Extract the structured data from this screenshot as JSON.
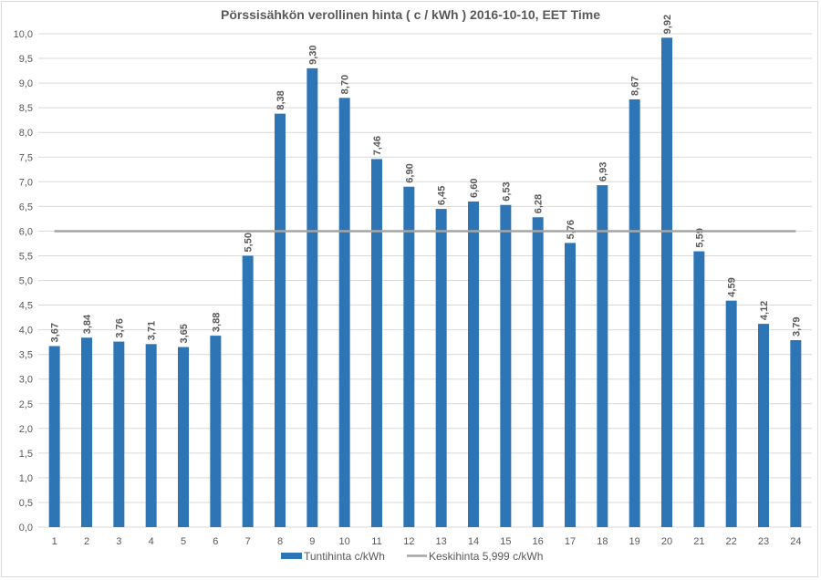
{
  "chart_data": {
    "type": "bar",
    "title": "Pörssisähkön verollinen hinta ( c / kWh ) 2016-10-10, EET Time",
    "xlabel": "",
    "ylabel": "",
    "ylim": [
      0,
      10
    ],
    "yticks": [
      "0,0",
      "0,5",
      "1,0",
      "1,5",
      "2,0",
      "2,5",
      "3,0",
      "3,5",
      "4,0",
      "4,5",
      "5,0",
      "5,5",
      "6,0",
      "6,5",
      "7,0",
      "7,5",
      "8,0",
      "8,5",
      "9,0",
      "9,5",
      "10,0"
    ],
    "categories": [
      "1",
      "2",
      "3",
      "4",
      "5",
      "6",
      "7",
      "8",
      "9",
      "10",
      "11",
      "12",
      "13",
      "14",
      "15",
      "16",
      "17",
      "18",
      "19",
      "20",
      "21",
      "22",
      "23",
      "24"
    ],
    "series": [
      {
        "name": "Tuntihinta c/kWh",
        "kind": "bar",
        "color": "#2E75B6",
        "values": [
          3.67,
          3.84,
          3.76,
          3.71,
          3.65,
          3.88,
          5.5,
          8.38,
          9.3,
          8.7,
          7.46,
          6.9,
          6.45,
          6.6,
          6.53,
          6.28,
          5.76,
          6.93,
          8.67,
          9.92,
          5.59,
          4.59,
          4.12,
          3.79
        ],
        "labels": [
          "3,67",
          "3,84",
          "3,76",
          "3,71",
          "3,65",
          "3,88",
          "5,50",
          "8,38",
          "9,30",
          "8,70",
          "7,46",
          "6,90",
          "6,45",
          "6,60",
          "6,53",
          "6,28",
          "5,76",
          "6,93",
          "8,67",
          "9,92",
          "5,59",
          "4,59",
          "4,12",
          "3,79"
        ]
      },
      {
        "name": "Keskihinta 5,999 c/kWh",
        "kind": "line",
        "color": "#A5A5A5",
        "value": 5.999
      }
    ],
    "grid": true,
    "legend_position": "bottom"
  }
}
